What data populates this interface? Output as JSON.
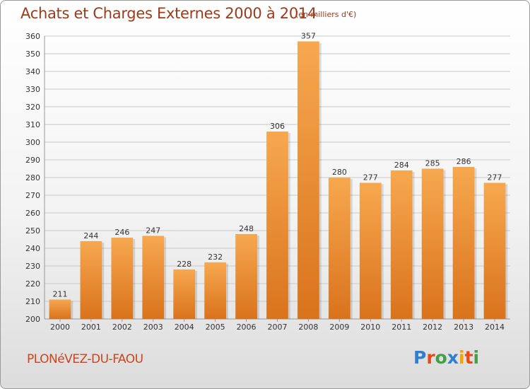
{
  "chart_data": {
    "type": "bar",
    "title": "Achats et Charges Externes 2000 à 2014",
    "unit_note": "(en milliers d'€)",
    "categories": [
      "2000",
      "2001",
      "2002",
      "2003",
      "2004",
      "2005",
      "2006",
      "2007",
      "2008",
      "2009",
      "2010",
      "2011",
      "2012",
      "2013",
      "2014"
    ],
    "values": [
      211,
      244,
      246,
      247,
      228,
      232,
      248,
      306,
      357,
      280,
      277,
      284,
      285,
      286,
      277
    ],
    "ylim": [
      200,
      360
    ],
    "yticks": [
      200,
      210,
      220,
      230,
      240,
      250,
      260,
      270,
      280,
      290,
      300,
      310,
      320,
      330,
      340,
      350,
      360
    ],
    "grid": true,
    "bar_color": "#ef9c44"
  },
  "footer": {
    "place": "PLONéVEZ-DU-FAOU",
    "logo": "Proxiti",
    "logo_colors": [
      "#2f7fd0",
      "#e64a19",
      "#43a047",
      "#2f7fd0",
      "#f4a300",
      "#e64a19",
      "#43a047"
    ]
  }
}
